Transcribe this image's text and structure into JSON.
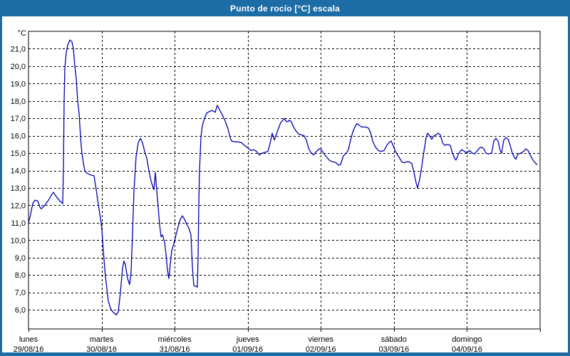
{
  "window": {
    "title": "Punto de rocío [°C] escala",
    "frame_color": "#1c6ca6",
    "title_text_color": "#ffffff",
    "panel_background": "#ffffff"
  },
  "chart_data": {
    "type": "line",
    "title": "Punto de rocío [°C] escala",
    "y_unit_label": "°C",
    "ylim": [
      4.9,
      22.0
    ],
    "grid": {
      "horizontal": "dashed",
      "vertical": "dashed",
      "color": "#000000"
    },
    "legend": "none",
    "line_color": "#0000b4",
    "axis_color": "#000000",
    "yticks": [
      {
        "value": 21,
        "label": "21,0"
      },
      {
        "value": 20,
        "label": "20,0"
      },
      {
        "value": 19,
        "label": "19,0"
      },
      {
        "value": 18,
        "label": "18,0"
      },
      {
        "value": 17,
        "label": "17,0"
      },
      {
        "value": 16,
        "label": "16,0"
      },
      {
        "value": 15,
        "label": "15,0"
      },
      {
        "value": 14,
        "label": "14,0"
      },
      {
        "value": 13,
        "label": "13,0"
      },
      {
        "value": 12,
        "label": "12,0"
      },
      {
        "value": 11,
        "label": "11,0"
      },
      {
        "value": 10,
        "label": "10,0"
      },
      {
        "value": 9,
        "label": "9,0"
      },
      {
        "value": 8,
        "label": "8,0"
      },
      {
        "value": 7,
        "label": "7,0"
      },
      {
        "value": 6,
        "label": "6,0"
      }
    ],
    "x_days": [
      {
        "name": "lunes",
        "date": "29/08/16"
      },
      {
        "name": "martes",
        "date": "30/08/16"
      },
      {
        "name": "miércoles",
        "date": "31/08/16"
      },
      {
        "name": "jueves",
        "date": "01/09/16"
      },
      {
        "name": "viernes",
        "date": "02/09/16"
      },
      {
        "name": "sábado",
        "date": "03/09/16"
      },
      {
        "name": "domingo",
        "date": "04/09/16"
      }
    ],
    "series": [
      {
        "name": "Punto de rocío",
        "color": "#0000b4",
        "x_unit": "days_since_monday_00h",
        "points": [
          [
            0,
            11.0
          ],
          [
            0.029,
            11.5
          ],
          [
            0.058,
            12.1
          ],
          [
            0.088,
            12.3
          ],
          [
            0.127,
            12.25
          ],
          [
            0.156,
            11.9
          ],
          [
            0.175,
            11.8
          ],
          [
            0.224,
            12.0
          ],
          [
            0.273,
            12.3
          ],
          [
            0.322,
            12.65
          ],
          [
            0.341,
            12.75
          ],
          [
            0.38,
            12.5
          ],
          [
            0.419,
            12.3
          ],
          [
            0.468,
            12.1
          ],
          [
            0.478,
            14.0
          ],
          [
            0.487,
            18.0
          ],
          [
            0.497,
            19.9
          ],
          [
            0.517,
            20.8
          ],
          [
            0.536,
            21.2
          ],
          [
            0.565,
            21.5
          ],
          [
            0.595,
            21.4
          ],
          [
            0.614,
            21.0
          ],
          [
            0.634,
            20.0
          ],
          [
            0.653,
            19.3
          ],
          [
            0.673,
            18.0
          ],
          [
            0.692,
            17.3
          ],
          [
            0.702,
            16.6
          ],
          [
            0.721,
            15.4
          ],
          [
            0.731,
            15.0
          ],
          [
            0.751,
            14.45
          ],
          [
            0.77,
            14.0
          ],
          [
            0.799,
            13.85
          ],
          [
            0.848,
            13.75
          ],
          [
            0.897,
            13.7
          ],
          [
            0.926,
            12.9
          ],
          [
            0.955,
            12.05
          ],
          [
            0.994,
            11.0
          ],
          [
            1.004,
            10.6
          ],
          [
            1.024,
            9.4
          ],
          [
            1.053,
            7.9
          ],
          [
            1.072,
            7.2
          ],
          [
            1.092,
            6.5
          ],
          [
            1.121,
            6.1
          ],
          [
            1.15,
            5.9
          ],
          [
            1.199,
            5.7
          ],
          [
            1.228,
            5.9
          ],
          [
            1.258,
            7.0
          ],
          [
            1.287,
            8.4
          ],
          [
            1.306,
            8.8
          ],
          [
            1.326,
            8.6
          ],
          [
            1.355,
            7.8
          ],
          [
            1.384,
            7.45
          ],
          [
            1.404,
            8.2
          ],
          [
            1.423,
            10.4
          ],
          [
            1.443,
            12.8
          ],
          [
            1.472,
            14.8
          ],
          [
            1.501,
            15.6
          ],
          [
            1.531,
            15.85
          ],
          [
            1.56,
            15.6
          ],
          [
            1.589,
            15.1
          ],
          [
            1.618,
            14.7
          ],
          [
            1.648,
            14.0
          ],
          [
            1.677,
            13.4
          ],
          [
            1.706,
            13.0
          ],
          [
            1.716,
            12.9
          ],
          [
            1.735,
            13.9
          ],
          [
            1.755,
            12.85
          ],
          [
            1.774,
            11.9
          ],
          [
            1.794,
            10.9
          ],
          [
            1.813,
            10.2
          ],
          [
            1.833,
            10.3
          ],
          [
            1.862,
            9.9
          ],
          [
            1.882,
            9.2
          ],
          [
            1.901,
            8.3
          ],
          [
            1.921,
            7.8
          ],
          [
            1.94,
            8.6
          ],
          [
            1.96,
            9.4
          ],
          [
            1.989,
            9.8
          ],
          [
            2.018,
            10.3
          ],
          [
            2.048,
            10.8
          ],
          [
            2.077,
            11.2
          ],
          [
            2.106,
            11.4
          ],
          [
            2.135,
            11.2
          ],
          [
            2.165,
            10.9
          ],
          [
            2.194,
            10.7
          ],
          [
            2.223,
            10.3
          ],
          [
            2.242,
            8.5
          ],
          [
            2.262,
            7.4
          ],
          [
            2.291,
            7.35
          ],
          [
            2.311,
            7.3
          ],
          [
            2.32,
            9.0
          ],
          [
            2.33,
            12.0
          ],
          [
            2.34,
            14.0
          ],
          [
            2.359,
            15.9
          ],
          [
            2.379,
            16.6
          ],
          [
            2.408,
            17.0
          ],
          [
            2.437,
            17.3
          ],
          [
            2.476,
            17.4
          ],
          [
            2.515,
            17.45
          ],
          [
            2.554,
            17.35
          ],
          [
            2.583,
            17.75
          ],
          [
            2.613,
            17.5
          ],
          [
            2.652,
            17.2
          ],
          [
            2.691,
            16.85
          ],
          [
            2.73,
            16.4
          ],
          [
            2.759,
            15.9
          ],
          [
            2.779,
            15.7
          ],
          [
            2.818,
            15.65
          ],
          [
            2.866,
            15.65
          ],
          [
            2.915,
            15.6
          ],
          [
            2.954,
            15.45
          ],
          [
            3.003,
            15.3
          ],
          [
            3.042,
            15.15
          ],
          [
            3.081,
            15.2
          ],
          [
            3.12,
            15.1
          ],
          [
            3.159,
            14.9
          ],
          [
            3.198,
            15.0
          ],
          [
            3.237,
            15.05
          ],
          [
            3.276,
            15.1
          ],
          [
            3.305,
            15.55
          ],
          [
            3.334,
            16.15
          ],
          [
            3.364,
            15.75
          ],
          [
            3.393,
            16.1
          ],
          [
            3.422,
            16.45
          ],
          [
            3.451,
            16.75
          ],
          [
            3.481,
            16.9
          ],
          [
            3.5,
            17.0
          ],
          [
            3.52,
            16.85
          ],
          [
            3.549,
            16.8
          ],
          [
            3.568,
            16.9
          ],
          [
            3.597,
            16.8
          ],
          [
            3.627,
            16.5
          ],
          [
            3.656,
            16.3
          ],
          [
            3.695,
            16.1
          ],
          [
            3.734,
            16.05
          ],
          [
            3.773,
            16.0
          ],
          [
            3.802,
            15.75
          ],
          [
            3.831,
            15.3
          ],
          [
            3.861,
            15.05
          ],
          [
            3.9,
            14.9
          ],
          [
            3.939,
            15.1
          ],
          [
            3.978,
            15.25
          ],
          [
            4.007,
            15.2
          ],
          [
            4.036,
            15.0
          ],
          [
            4.075,
            14.8
          ],
          [
            4.114,
            14.6
          ],
          [
            4.163,
            14.5
          ],
          [
            4.212,
            14.45
          ],
          [
            4.241,
            14.3
          ],
          [
            4.27,
            14.35
          ],
          [
            4.309,
            14.85
          ],
          [
            4.348,
            15.0
          ],
          [
            4.377,
            15.2
          ],
          [
            4.407,
            15.75
          ],
          [
            4.436,
            16.2
          ],
          [
            4.465,
            16.5
          ],
          [
            4.494,
            16.7
          ],
          [
            4.524,
            16.6
          ],
          [
            4.563,
            16.5
          ],
          [
            4.611,
            16.5
          ],
          [
            4.65,
            16.45
          ],
          [
            4.68,
            16.2
          ],
          [
            4.709,
            15.7
          ],
          [
            4.748,
            15.35
          ],
          [
            4.787,
            15.15
          ],
          [
            4.826,
            15.1
          ],
          [
            4.865,
            15.15
          ],
          [
            4.904,
            15.45
          ],
          [
            4.943,
            15.65
          ],
          [
            4.962,
            15.7
          ],
          [
            4.992,
            15.4
          ],
          [
            5.021,
            15.1
          ],
          [
            5.05,
            14.9
          ],
          [
            5.079,
            14.7
          ],
          [
            5.109,
            14.5
          ],
          [
            5.138,
            14.45
          ],
          [
            5.167,
            14.5
          ],
          [
            5.206,
            14.5
          ],
          [
            5.245,
            14.4
          ],
          [
            5.274,
            13.9
          ],
          [
            5.304,
            13.3
          ],
          [
            5.323,
            13.0
          ],
          [
            5.352,
            13.5
          ],
          [
            5.382,
            14.25
          ],
          [
            5.411,
            15.1
          ],
          [
            5.44,
            15.9
          ],
          [
            5.46,
            16.15
          ],
          [
            5.489,
            16.0
          ],
          [
            5.518,
            15.8
          ],
          [
            5.547,
            16.0
          ],
          [
            5.577,
            16.05
          ],
          [
            5.606,
            16.15
          ],
          [
            5.635,
            16.05
          ],
          [
            5.665,
            15.6
          ],
          [
            5.694,
            15.45
          ],
          [
            5.733,
            15.5
          ],
          [
            5.772,
            15.45
          ],
          [
            5.801,
            15.0
          ],
          [
            5.83,
            14.7
          ],
          [
            5.85,
            14.6
          ],
          [
            5.889,
            15.0
          ],
          [
            5.928,
            15.2
          ],
          [
            5.967,
            15.1
          ],
          [
            5.996,
            15.0
          ],
          [
            6.035,
            15.15
          ],
          [
            6.074,
            15.0
          ],
          [
            6.103,
            14.95
          ],
          [
            6.133,
            15.1
          ],
          [
            6.172,
            15.3
          ],
          [
            6.201,
            15.35
          ],
          [
            6.23,
            15.25
          ],
          [
            6.259,
            15.0
          ],
          [
            6.298,
            14.95
          ],
          [
            6.337,
            15.0
          ],
          [
            6.367,
            15.7
          ],
          [
            6.396,
            15.85
          ],
          [
            6.425,
            15.7
          ],
          [
            6.454,
            15.15
          ],
          [
            6.474,
            15.0
          ],
          [
            6.503,
            15.75
          ],
          [
            6.532,
            15.9
          ],
          [
            6.562,
            15.8
          ],
          [
            6.591,
            15.45
          ],
          [
            6.62,
            15.0
          ],
          [
            6.649,
            14.75
          ],
          [
            6.669,
            14.65
          ],
          [
            6.698,
            14.95
          ],
          [
            6.737,
            15.0
          ],
          [
            6.776,
            15.1
          ],
          [
            6.805,
            15.25
          ],
          [
            6.835,
            15.15
          ],
          [
            6.864,
            14.9
          ],
          [
            6.903,
            14.6
          ],
          [
            6.942,
            14.4
          ],
          [
            6.961,
            14.35
          ]
        ]
      }
    ]
  }
}
